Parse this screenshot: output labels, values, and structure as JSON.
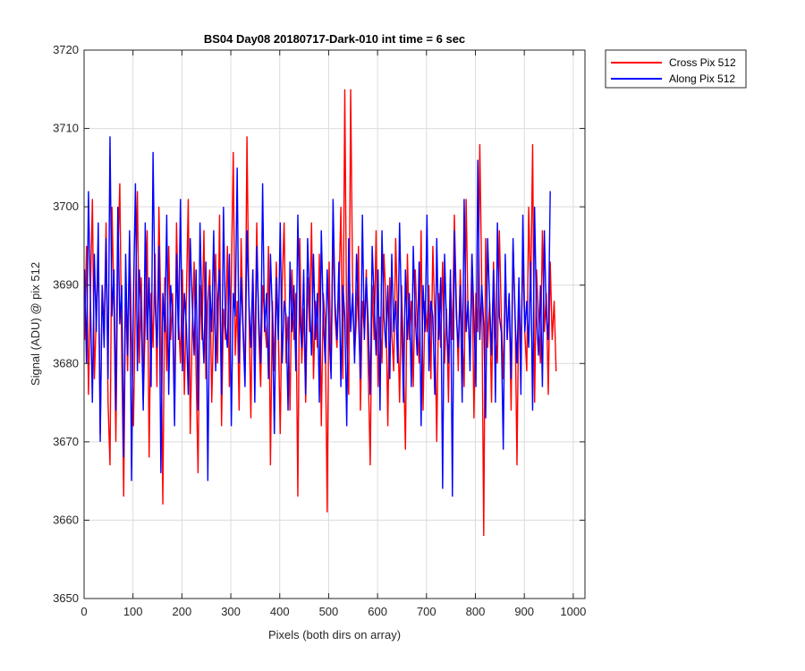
{
  "chart_data": {
    "type": "line",
    "title": "BS04 Day08 20180717-Dark-010 int time = 6 sec",
    "xlabel": "Pixels (both dirs on array)",
    "ylabel": "Signal (ADU) @ pix 512",
    "xlim": [
      0,
      1024
    ],
    "ylim": [
      3650,
      3720
    ],
    "xticks": [
      0,
      100,
      200,
      300,
      400,
      500,
      600,
      700,
      800,
      900,
      1000
    ],
    "yticks": [
      3650,
      3660,
      3670,
      3680,
      3690,
      3700,
      3710,
      3720
    ],
    "grid": true,
    "legend_position": "outside-top-right",
    "series": [
      {
        "name": "Cross Pix 512",
        "color": "#ff0000",
        "x_start": 1,
        "x_step": 4,
        "values": [
          3683,
          3695,
          3676,
          3689,
          3701,
          3678,
          3686,
          3694,
          3671,
          3690,
          3684,
          3698,
          3675,
          3667,
          3700,
          3688,
          3670,
          3693,
          3703,
          3681,
          3663,
          3690,
          3679,
          3696,
          3684,
          3672,
          3688,
          3702,
          3680,
          3691,
          3675,
          3685,
          3697,
          3668,
          3689,
          3682,
          3694,
          3677,
          3700,
          3686,
          3662,
          3691,
          3679,
          3695,
          3683,
          3689,
          3674,
          3698,
          3686,
          3680,
          3692,
          3676,
          3688,
          3701,
          3671,
          3684,
          3693,
          3679,
          3666,
          3690,
          3683,
          3697,
          3678,
          3688,
          3692,
          3675,
          3686,
          3694,
          3680,
          3699,
          3672,
          3687,
          3683,
          3695,
          3677,
          3690,
          3707,
          3681,
          3688,
          3674,
          3696,
          3685,
          3679,
          3709,
          3687,
          3673,
          3692,
          3680,
          3698,
          3684,
          3677,
          3690,
          3686,
          3682,
          3695,
          3667,
          3688,
          3679,
          3693,
          3684,
          3671,
          3690,
          3698,
          3680,
          3686,
          3674,
          3692,
          3683,
          3689,
          3663,
          3696,
          3680,
          3687,
          3675,
          3691,
          3684,
          3698,
          3678,
          3688,
          3682,
          3694,
          3672,
          3689,
          3685,
          3661,
          3693,
          3679,
          3697,
          3686,
          3682,
          3689,
          3700,
          3678,
          3715,
          3683,
          3676,
          3715,
          3690,
          3681,
          3686,
          3695,
          3674,
          3688,
          3684,
          3692,
          3679,
          3667,
          3690,
          3683,
          3697,
          3677,
          3686,
          3680,
          3694,
          3688,
          3672,
          3691,
          3684,
          3679,
          3696,
          3686,
          3675,
          3690,
          3681,
          3669,
          3694,
          3683,
          3688,
          3677,
          3692,
          3685,
          3680,
          3697,
          3674,
          3688,
          3684,
          3690,
          3678,
          3695,
          3686,
          3670,
          3689,
          3682,
          3693,
          3680,
          3687,
          3675,
          3691,
          3683,
          3699,
          3688,
          3679,
          3692,
          3684,
          3677,
          3701,
          3686,
          3681,
          3694,
          3673,
          3689,
          3684,
          3708,
          3690,
          3658,
          3696,
          3682,
          3688,
          3675,
          3693,
          3684,
          3680,
          3697,
          3686,
          3678,
          3691,
          3683,
          3689,
          3674,
          3695,
          3687,
          3667,
          3690,
          3681,
          3694,
          3684,
          3679,
          3700,
          3688,
          3708,
          3675,
          3692,
          3686,
          3680,
          3697,
          3684,
          3689,
          3676,
          3693,
          3683,
          3688,
          3679
        ]
      },
      {
        "name": "Along Pix 512",
        "color": "#0000ff",
        "x_start": 1,
        "x_step": 4,
        "values": [
          3692,
          3680,
          3702,
          3688,
          3675,
          3694,
          3684,
          3698,
          3670,
          3690,
          3682,
          3696,
          3678,
          3709,
          3686,
          3692,
          3674,
          3700,
          3685,
          3690,
          3668,
          3694,
          3681,
          3697,
          3665,
          3688,
          3703,
          3679,
          3692,
          3686,
          3674,
          3698,
          3683,
          3691,
          3677,
          3707,
          3688,
          3682,
          3695,
          3666,
          3689,
          3684,
          3699,
          3676,
          3690,
          3686,
          3672,
          3694,
          3683,
          3701,
          3679,
          3689,
          3685,
          3676,
          3696,
          3688,
          3681,
          3692,
          3674,
          3698,
          3686,
          3680,
          3693,
          3665,
          3690,
          3684,
          3697,
          3679,
          3688,
          3692,
          3676,
          3700,
          3685,
          3682,
          3694,
          3672,
          3689,
          3686,
          3705,
          3680,
          3691,
          3684,
          3677,
          3697,
          3688,
          3682,
          3692,
          3675,
          3695,
          3686,
          3680,
          3703,
          3684,
          3689,
          3678,
          3694,
          3686,
          3671,
          3691,
          3683,
          3698,
          3680,
          3688,
          3686,
          3674,
          3693,
          3684,
          3690,
          3679,
          3699,
          3686,
          3682,
          3692,
          3676,
          3696,
          3688,
          3681,
          3694,
          3683,
          3689,
          3675,
          3697,
          3686,
          3680,
          3692,
          3684,
          3678,
          3701,
          3688,
          3683,
          3693,
          3677,
          3690,
          3686,
          3672,
          3696,
          3684,
          3689,
          3680,
          3694,
          3686,
          3678,
          3699,
          3683,
          3691,
          3685,
          3676,
          3695,
          3688,
          3681,
          3692,
          3674,
          3697,
          3686,
          3682,
          3690,
          3678,
          3694,
          3684,
          3688,
          3680,
          3698,
          3686,
          3675,
          3692,
          3683,
          3689,
          3677,
          3695,
          3686,
          3681,
          3693,
          3672,
          3690,
          3684,
          3699,
          3679,
          3688,
          3686,
          3676,
          3696,
          3683,
          3691,
          3664,
          3694,
          3685,
          3680,
          3692,
          3663,
          3697,
          3686,
          3682,
          3690,
          3675,
          3701,
          3684,
          3688,
          3679,
          3694,
          3686,
          3677,
          3706,
          3683,
          3690,
          3685,
          3673,
          3696,
          3688,
          3681,
          3692,
          3675,
          3698,
          3686,
          3684,
          3669,
          3694,
          3683,
          3689,
          3678,
          3696,
          3686,
          3680,
          3691,
          3676,
          3699,
          3684,
          3688,
          3682,
          3693,
          3674,
          3700,
          3686,
          3681,
          3690,
          3677,
          3697,
          3686,
          3683,
          3702
        ]
      }
    ]
  }
}
